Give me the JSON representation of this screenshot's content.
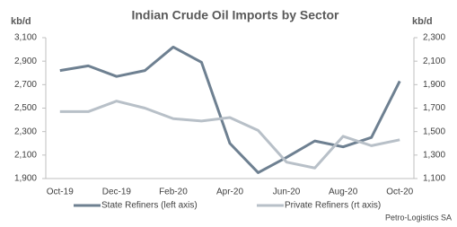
{
  "chart_data": {
    "type": "line",
    "title": "Indian Crude Oil Imports by Sector",
    "y_label": "kb/d",
    "y2_label": "kb/d",
    "categories": [
      "Oct-19",
      null,
      "Dec-19",
      null,
      "Feb-20",
      null,
      "Apr-20",
      null,
      "Jun-20",
      null,
      "Aug-20",
      null,
      "Oct-20"
    ],
    "series": [
      {
        "name": "State Refiners (left axis)",
        "color": "#6e8091",
        "values": [
          2820,
          2860,
          2770,
          2820,
          3020,
          2890,
          2200,
          1950,
          2080,
          2220,
          2170,
          2250,
          2730
        ]
      },
      {
        "name": "Private Refiners (rt axis)",
        "color": "#b8c0c8",
        "axis": "y2",
        "values": [
          1670,
          1670,
          1760,
          1700,
          1610,
          1590,
          1620,
          1510,
          1240,
          1190,
          1460,
          1380,
          1430
        ]
      }
    ],
    "ylim": [
      1900,
      3100
    ],
    "yticks": [
      {
        "value": 1900,
        "label": "1,900"
      },
      {
        "value": 2100,
        "label": "2,100"
      },
      {
        "value": 2300,
        "label": "2,300"
      },
      {
        "value": 2500,
        "label": "2,500"
      },
      {
        "value": 2700,
        "label": "2,700"
      },
      {
        "value": 2900,
        "label": "2,900"
      },
      {
        "value": 3100,
        "label": "3,100"
      }
    ],
    "y2lim": [
      1100,
      2300
    ],
    "y2ticks": [
      {
        "value": 1100,
        "label": "1,100"
      },
      {
        "value": 1300,
        "label": "1,300"
      },
      {
        "value": 1500,
        "label": "1,500"
      },
      {
        "value": 1700,
        "label": "1,700"
      },
      {
        "value": 1900,
        "label": "1,900"
      },
      {
        "value": 2100,
        "label": "2,100"
      },
      {
        "value": 2300,
        "label": "2,300"
      }
    ],
    "grid": false,
    "legend": "bottom",
    "source": "Petro-Logistics SA"
  }
}
